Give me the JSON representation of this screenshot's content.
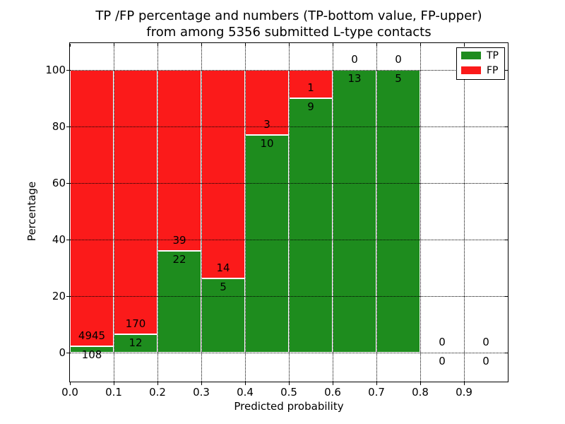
{
  "title": {
    "line1": "TP /FP percentage and numbers (TP-bottom value, FP-upper)",
    "line2": "from among 5356 submitted L-type contacts"
  },
  "chart_data": {
    "type": "bar",
    "stacked": true,
    "title": "TP /FP percentage and numbers (TP-bottom value, FP-upper)\nfrom among 5356 submitted L-type contacts",
    "xlabel": "Predicted probability",
    "ylabel": "Percentage",
    "total_submitted": 5356,
    "xlim": [
      0.0,
      1.0
    ],
    "ylim": [
      -10,
      110
    ],
    "x_ticks": [
      "0.0",
      "0.1",
      "0.2",
      "0.3",
      "0.4",
      "0.5",
      "0.6",
      "0.7",
      "0.8",
      "0.9"
    ],
    "y_ticks": [
      0,
      20,
      40,
      60,
      80,
      100
    ],
    "grid": "dotted",
    "legend": {
      "position": "upper-right",
      "entries": [
        {
          "label": "TP",
          "color": "#1e8c1e"
        },
        {
          "label": "FP",
          "color": "#fb1a1a"
        }
      ]
    },
    "colors": {
      "tp": "#1e8c1e",
      "fp": "#fb1a1a",
      "edge": "#ffffff",
      "grid": "#000000",
      "text": "#000000"
    },
    "bins": [
      {
        "range": [
          0.0,
          0.1
        ],
        "tp": 108,
        "fp": 4945,
        "tp_pct": 2.14
      },
      {
        "range": [
          0.1,
          0.2
        ],
        "tp": 12,
        "fp": 170,
        "tp_pct": 6.59
      },
      {
        "range": [
          0.2,
          0.3
        ],
        "tp": 22,
        "fp": 39,
        "tp_pct": 36.07
      },
      {
        "range": [
          0.3,
          0.4
        ],
        "tp": 5,
        "fp": 14,
        "tp_pct": 26.32
      },
      {
        "range": [
          0.4,
          0.5
        ],
        "tp": 10,
        "fp": 3,
        "tp_pct": 76.92
      },
      {
        "range": [
          0.5,
          0.6
        ],
        "tp": 9,
        "fp": 1,
        "tp_pct": 90.0
      },
      {
        "range": [
          0.6,
          0.7
        ],
        "tp": 13,
        "fp": 0,
        "tp_pct": 100.0
      },
      {
        "range": [
          0.7,
          0.8
        ],
        "tp": 5,
        "fp": 0,
        "tp_pct": 100.0
      },
      {
        "range": [
          0.8,
          0.9
        ],
        "tp": 0,
        "fp": 0,
        "tp_pct": 0.0
      },
      {
        "range": [
          0.9,
          1.0
        ],
        "tp": 0,
        "fp": 0,
        "tp_pct": 0.0
      }
    ]
  }
}
